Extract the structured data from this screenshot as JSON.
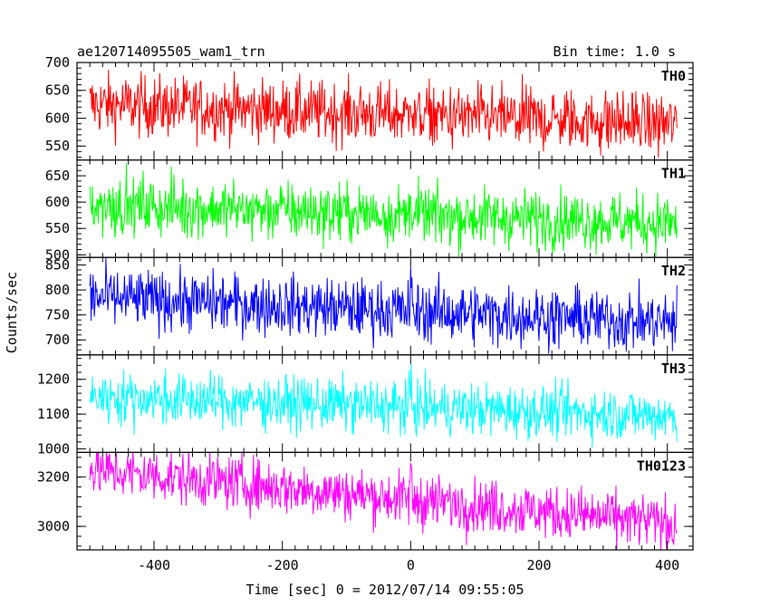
{
  "header": {
    "title": "ae120714095505_wam1_trn",
    "bin_time": "Bin time: 1.0 s"
  },
  "chart_data": {
    "type": "line",
    "xlabel": "Time [sec] 0 = 2012/07/14 09:55:05",
    "ylabel": "Counts/sec",
    "xlim": [
      -520,
      440
    ],
    "x_ticks": [
      -400,
      -200,
      0,
      200,
      400
    ],
    "x_range": [
      -500,
      415
    ],
    "bin_time_sec": 1.0,
    "panels": [
      {
        "name": "TH0",
        "color": "#ff0000",
        "ylim": [
          525,
          700
        ],
        "y_ticks": [
          550,
          600,
          650,
          700
        ],
        "start_level": 625,
        "end_level": 590,
        "amplitude": 28,
        "spike_at": 0,
        "spike_height": 60
      },
      {
        "name": "TH1",
        "color": "#00ff00",
        "ylim": [
          495,
          680
        ],
        "y_ticks": [
          500,
          550,
          600,
          650
        ],
        "start_level": 595,
        "end_level": 560,
        "amplitude": 28,
        "spike_at": 0,
        "spike_height": 55
      },
      {
        "name": "TH2",
        "color": "#0000ff",
        "ylim": [
          670,
          865
        ],
        "y_ticks": [
          700,
          750,
          800,
          850
        ],
        "start_level": 785,
        "end_level": 735,
        "amplitude": 30,
        "spike_at": 0,
        "spike_height": 40
      },
      {
        "name": "TH3",
        "color": "#00ffff",
        "ylim": [
          990,
          1270
        ],
        "y_ticks": [
          1000,
          1100,
          1200
        ],
        "start_level": 1150,
        "end_level": 1095,
        "amplitude": 38,
        "spike_at": 0,
        "spike_height": 60
      },
      {
        "name": "TH0123",
        "color": "#ff00ff",
        "ylim": [
          2905,
          3300
        ],
        "y_ticks": [
          3000,
          3200
        ],
        "start_level": 3230,
        "end_level": 3010,
        "amplitude": 55,
        "spike_at": 0,
        "spike_height": 110
      }
    ]
  }
}
